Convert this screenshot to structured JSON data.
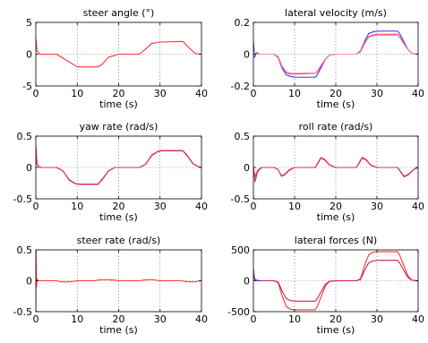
{
  "chart_data": [
    {
      "type": "line",
      "title": "steer angle (°)",
      "xlabel": "time (s)",
      "ylabel": "",
      "xlim": [
        0,
        40
      ],
      "ylim": [
        -5,
        5
      ],
      "xticks": [
        0,
        10,
        20,
        30,
        40
      ],
      "yticks": [
        -5,
        0,
        5
      ],
      "grid": true,
      "series": [
        {
          "color": "#ff3333",
          "x": [
            0,
            0.3,
            1,
            2,
            5,
            7.5,
            10,
            15,
            16,
            17.5,
            20,
            25,
            26.5,
            28,
            30,
            35.5,
            37,
            38.5,
            40
          ],
          "y": [
            2.5,
            0.5,
            0,
            0,
            0,
            -1,
            -2,
            -2,
            -1.6,
            -0.5,
            0,
            0,
            0.8,
            1.7,
            1.9,
            2,
            1,
            0.1,
            0
          ]
        }
      ]
    },
    {
      "type": "line",
      "title": "lateral velocity (m/s)",
      "xlabel": "time (s)",
      "ylabel": "",
      "xlim": [
        0,
        40
      ],
      "ylim": [
        -0.2,
        0.2
      ],
      "xticks": [
        0,
        10,
        20,
        30,
        40
      ],
      "yticks": [
        -0.2,
        0,
        0.2
      ],
      "grid": true,
      "series": [
        {
          "color": "#3333ff",
          "x": [
            0,
            0.3,
            0.7,
            1.5,
            5,
            6,
            7,
            8,
            9,
            10,
            15,
            15.5,
            16.5,
            17.5,
            18.5,
            20,
            25,
            26,
            27,
            28,
            29,
            30,
            35,
            35.5,
            36.5,
            37.5,
            38.5,
            40
          ],
          "y": [
            0.08,
            -0.02,
            0.01,
            0,
            0,
            -0.02,
            -0.09,
            -0.13,
            -0.14,
            -0.145,
            -0.145,
            -0.13,
            -0.08,
            -0.03,
            -0.005,
            0,
            0,
            0.02,
            0.08,
            0.13,
            0.14,
            0.145,
            0.145,
            0.13,
            0.08,
            0.03,
            0.005,
            0
          ]
        },
        {
          "color": "#ff3333",
          "x": [
            0,
            0.3,
            0.7,
            1.5,
            5,
            6,
            7,
            8,
            9,
            10,
            15,
            15.5,
            16.5,
            17.5,
            18.5,
            20,
            25,
            26,
            27,
            28,
            29,
            30,
            35,
            35.5,
            36.5,
            37.5,
            38.5,
            40
          ],
          "y": [
            0.03,
            -0.01,
            0.005,
            0,
            0,
            -0.015,
            -0.08,
            -0.115,
            -0.125,
            -0.125,
            -0.12,
            -0.11,
            -0.07,
            -0.03,
            -0.005,
            0,
            0,
            0.015,
            0.07,
            0.11,
            0.12,
            0.125,
            0.125,
            0.11,
            0.07,
            0.03,
            0.005,
            0
          ]
        },
        {
          "color": "#ff88bb",
          "x": [
            0,
            0.3,
            0.7,
            1.5,
            5,
            6,
            7,
            8,
            9,
            10,
            15,
            15.5,
            16.5,
            17.5,
            18.5,
            20,
            25,
            26,
            27,
            28,
            29,
            30,
            35,
            35.5,
            36.5,
            37.5,
            38.5,
            40
          ],
          "y": [
            0.02,
            -0.005,
            0.002,
            0,
            0,
            -0.013,
            -0.075,
            -0.11,
            -0.12,
            -0.12,
            -0.118,
            -0.105,
            -0.065,
            -0.028,
            -0.004,
            0,
            0,
            0.013,
            0.065,
            0.105,
            0.115,
            0.12,
            0.12,
            0.105,
            0.065,
            0.028,
            0.004,
            0
          ]
        }
      ]
    },
    {
      "type": "line",
      "title": "yaw rate (rad/s)",
      "xlabel": "time (s)",
      "ylabel": "",
      "xlim": [
        0,
        40
      ],
      "ylim": [
        -0.5,
        0.5
      ],
      "xticks": [
        0,
        10,
        20,
        30,
        40
      ],
      "yticks": [
        -0.5,
        0,
        0.5
      ],
      "grid": true,
      "series": [
        {
          "color": "#ff3333",
          "x": [
            0,
            0.3,
            0.8,
            1.5,
            5,
            6.5,
            8,
            9.5,
            10.5,
            15,
            16,
            17.5,
            19,
            20,
            25,
            26.5,
            28,
            29.5,
            30.5,
            35.5,
            36.5,
            38,
            39.5,
            40
          ],
          "y": [
            0.35,
            0.05,
            0.01,
            0,
            0,
            -0.05,
            -0.2,
            -0.26,
            -0.27,
            -0.27,
            -0.2,
            -0.06,
            0,
            0,
            0,
            0.05,
            0.2,
            0.26,
            0.27,
            0.27,
            0.2,
            0.06,
            0.005,
            0
          ]
        },
        {
          "color": "#cc3366",
          "x": [
            0,
            0.3,
            0.8,
            1.5,
            5,
            6.5,
            8,
            9.5,
            10.5,
            15,
            16,
            17.5,
            19,
            20,
            25,
            26.5,
            28,
            29.5,
            30.5,
            35.5,
            36.5,
            38,
            39.5,
            40
          ],
          "y": [
            0.3,
            0.04,
            0.01,
            0,
            0,
            -0.05,
            -0.19,
            -0.255,
            -0.265,
            -0.265,
            -0.19,
            -0.055,
            0,
            0,
            0,
            0.05,
            0.19,
            0.255,
            0.265,
            0.265,
            0.19,
            0.055,
            0.004,
            0
          ]
        }
      ]
    },
    {
      "type": "line",
      "title": "roll rate (rad/s)",
      "xlabel": "time (s)",
      "ylabel": "",
      "xlim": [
        0,
        40
      ],
      "ylim": [
        -0.5,
        0.5
      ],
      "xticks": [
        0,
        10,
        20,
        30,
        40
      ],
      "yticks": [
        -0.5,
        0,
        0.5
      ],
      "grid": true,
      "series": [
        {
          "color": "#ff3333",
          "x": [
            0,
            0.4,
            1,
            2,
            3,
            5,
            6,
            6.8,
            7.6,
            8.6,
            10,
            15,
            15.7,
            16.4,
            17.3,
            18.5,
            20,
            25,
            25.7,
            26.4,
            27.3,
            28.5,
            30,
            35,
            35.8,
            36.6,
            37.6,
            39,
            40
          ],
          "y": [
            0,
            -0.15,
            -0.05,
            0,
            0,
            0,
            -0.03,
            -0.14,
            -0.12,
            -0.05,
            0,
            0,
            0.08,
            0.16,
            0.13,
            0.04,
            0,
            0,
            0.08,
            0.16,
            0.13,
            0.04,
            0,
            0,
            -0.08,
            -0.15,
            -0.12,
            -0.03,
            0
          ]
        },
        {
          "color": "#cc3366",
          "x": [
            0,
            0.4,
            1,
            2,
            3,
            5,
            6,
            6.8,
            7.6,
            8.6,
            10,
            15,
            15.7,
            16.4,
            17.3,
            18.5,
            20,
            25,
            25.7,
            26.4,
            27.3,
            28.5,
            30,
            35,
            35.8,
            36.6,
            37.6,
            39,
            40
          ],
          "y": [
            0,
            -0.23,
            -0.07,
            0,
            0,
            0,
            -0.03,
            -0.13,
            -0.11,
            -0.04,
            0,
            0,
            0.07,
            0.15,
            0.12,
            0.035,
            0,
            0,
            0.07,
            0.15,
            0.12,
            0.035,
            0,
            0,
            -0.07,
            -0.14,
            -0.11,
            -0.025,
            0
          ]
        }
      ]
    },
    {
      "type": "line",
      "title": "steer rate (rad/s)",
      "xlabel": "time (s)",
      "ylabel": "",
      "xlim": [
        0,
        40
      ],
      "ylim": [
        -0.5,
        0.5
      ],
      "xticks": [
        0,
        10,
        20,
        30,
        40
      ],
      "yticks": [
        -0.5,
        0,
        0.5
      ],
      "grid": true,
      "series": [
        {
          "color": "#ff3333",
          "x": [
            0,
            0.05,
            0.15,
            0.3,
            0.5,
            1,
            2,
            5,
            6,
            7.5,
            9,
            10,
            14,
            15.5,
            17,
            19,
            20,
            25,
            26.5,
            28,
            30,
            35,
            36.5,
            38,
            40
          ],
          "y": [
            -0.45,
            0.48,
            -0.1,
            0.03,
            0,
            0,
            0,
            0,
            -0.015,
            -0.02,
            -0.01,
            0,
            0,
            0.015,
            0.02,
            0.01,
            0,
            0,
            0.015,
            0.02,
            0,
            0,
            -0.015,
            -0.02,
            0
          ]
        }
      ]
    },
    {
      "type": "line",
      "title": "lateral forces (N)",
      "xlabel": "time (s)",
      "ylabel": "",
      "xlim": [
        0,
        40
      ],
      "ylim": [
        -500,
        500
      ],
      "xticks": [
        0,
        10,
        20,
        30,
        40
      ],
      "yticks": [
        -500,
        0,
        500
      ],
      "grid": true,
      "series": [
        {
          "color": "#ff3333",
          "x": [
            0,
            0.3,
            0.8,
            1.5,
            5,
            6,
            7,
            8,
            9,
            10,
            15,
            15.5,
            16.5,
            17.5,
            18.5,
            20,
            25,
            26,
            27,
            28,
            29,
            30,
            35,
            35.5,
            36.5,
            37.5,
            38.5,
            40
          ],
          "y": [
            200,
            30,
            10,
            0,
            0,
            -30,
            -250,
            -420,
            -460,
            -470,
            -470,
            -420,
            -250,
            -80,
            -10,
            0,
            0,
            30,
            250,
            420,
            460,
            470,
            470,
            420,
            250,
            80,
            10,
            0
          ]
        },
        {
          "color": "#cc2255",
          "x": [
            0,
            0.3,
            0.8,
            1.5,
            5,
            6,
            7,
            8,
            9,
            10,
            15,
            15.5,
            16.5,
            17.5,
            18.5,
            20,
            25,
            26,
            27,
            28,
            29,
            30,
            35,
            35.5,
            36.5,
            37.5,
            38.5,
            40
          ],
          "y": [
            120,
            20,
            5,
            0,
            0,
            -20,
            -170,
            -290,
            -320,
            -330,
            -330,
            -290,
            -170,
            -55,
            -8,
            0,
            0,
            20,
            170,
            290,
            320,
            330,
            330,
            290,
            170,
            55,
            8,
            0
          ]
        },
        {
          "color": "#3333ff",
          "x": [
            0,
            0.2,
            0.5,
            1,
            2
          ],
          "y": [
            120,
            40,
            10,
            0,
            0
          ]
        }
      ]
    }
  ]
}
